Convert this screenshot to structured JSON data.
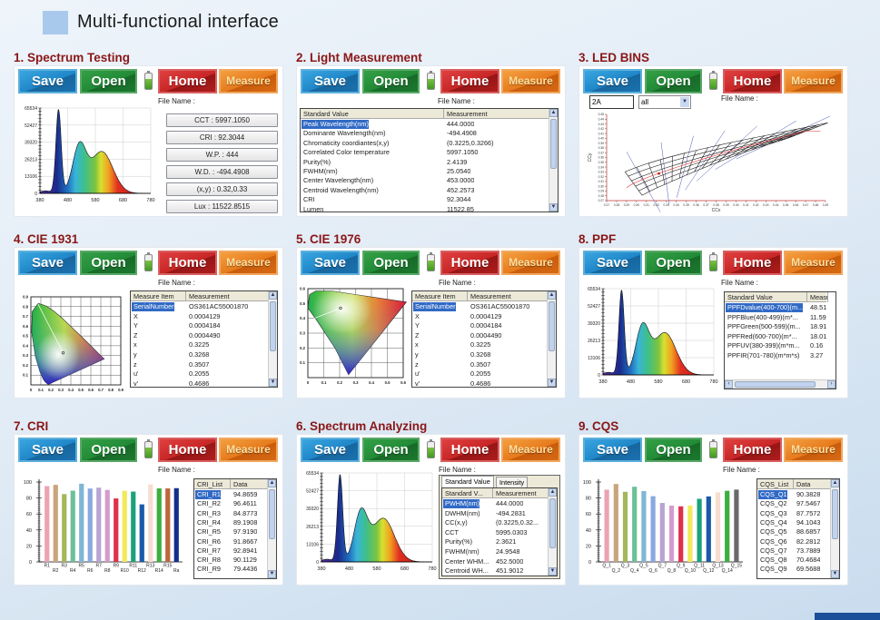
{
  "header": {
    "title": "Multi-functional interface"
  },
  "buttons": {
    "save": "Save",
    "open": "Open",
    "home": "Home",
    "measure": "Measure"
  },
  "file_name_label": "File Name :",
  "colors": {
    "title": "#8a1717",
    "save": "#1f86c8",
    "open": "#218a36",
    "home": "#c82626",
    "measure": "#e67a1c",
    "selection": "#316ac5"
  },
  "spectrum_axis": {
    "y_ticks": [
      "0",
      "13106",
      "26213",
      "39320",
      "52427",
      "65534"
    ],
    "x_ticks": [
      "380",
      "480",
      "580",
      "680",
      "780"
    ]
  },
  "panels": [
    {
      "id": "spectrum-testing",
      "title": "1. Spectrum Testing",
      "kind": "spectrum-values",
      "values": [
        "CCT : 5997.1050",
        "CRI : 92.3044",
        "W.P. : 444",
        "W.D. : -494.4908",
        "(x,y) : 0.32,0.33",
        "Lux : 11522.8515"
      ]
    },
    {
      "id": "light-measurement",
      "title": "2. Light Measurement",
      "kind": "table",
      "table": {
        "headers": [
          "Standard Value",
          "Measurement"
        ],
        "rows": [
          [
            "Peak Wavelength(nm)",
            "444.0000"
          ],
          [
            "Dominante Wavelength(nm)",
            "-494.4908"
          ],
          [
            "Chromaticity coordiantes(x,y)",
            "(0.3225,0.3266)"
          ],
          [
            "Correlated Color temperature",
            "5997.1050"
          ],
          [
            "Purity(%)",
            "2.4139"
          ],
          [
            "FWHM(nm)",
            "25.0540"
          ],
          [
            "Center Wavelength(nm)",
            "453.0000"
          ],
          [
            "Centroid Wavelength(nm)",
            "452.2573"
          ],
          [
            "CRI",
            "92.3044"
          ],
          [
            "Lumen",
            "11522.85"
          ]
        ]
      }
    },
    {
      "id": "led-bins",
      "title": "3. LED BINS",
      "kind": "bins",
      "bin_input": "2A",
      "bin_select": "all",
      "x_label": "CCx",
      "y_label": "CCy",
      "x_ticks": [
        "0.27",
        "0.28",
        "0.29",
        "0.30",
        "0.31",
        "0.32",
        "0.33",
        "0.34",
        "0.35",
        "0.36",
        "0.37",
        "0.38",
        "0.39",
        "0.40",
        "0.41",
        "0.42",
        "0.43",
        "0.44",
        "0.45",
        "0.46",
        "0.47",
        "0.48",
        "0.49"
      ],
      "y_ticks": [
        "0.27",
        "0.28",
        "0.29",
        "0.30",
        "0.31",
        "0.32",
        "0.33",
        "0.34",
        "0.35",
        "0.36",
        "0.37",
        "0.38",
        "0.39",
        "0.40",
        "0.41",
        "0.42",
        "0.43",
        "0.44",
        "0.45"
      ],
      "measured_point": {
        "x": 0.3225,
        "y": 0.3266
      }
    },
    {
      "id": "cie-1931",
      "title": "4. CIE 1931",
      "kind": "cie1931",
      "x_ticks": [
        "0",
        "0.1",
        "0.2",
        "0.3",
        "0.4",
        "0.5",
        "0.6",
        "0.7",
        "0.8",
        "0.9"
      ],
      "y_ticks": [
        "0.1",
        "0.2",
        "0.3",
        "0.4",
        "0.5",
        "0.6",
        "0.7",
        "0.8",
        "0.9"
      ],
      "measured_point": {
        "x": 0.3225,
        "y": 0.3268
      },
      "table": {
        "headers": [
          "Measure Item",
          "Measurement"
        ],
        "rows": [
          [
            "SerialNumber",
            "OS361AC55001870"
          ],
          [
            "X",
            "0.0004129"
          ],
          [
            "Y",
            "0.0004184"
          ],
          [
            "Z",
            "0.0004490"
          ],
          [
            "x",
            "0.3225"
          ],
          [
            "y",
            "0.3268"
          ],
          [
            "z",
            "0.3507"
          ],
          [
            "u'",
            "0.2055"
          ],
          [
            "v'",
            "0.4686"
          ]
        ]
      }
    },
    {
      "id": "cie-1976",
      "title": "5. CIE 1976",
      "kind": "cie1976",
      "x_ticks": [
        "0",
        "0.1",
        "0.2",
        "0.3",
        "0.4",
        "0.5",
        "0.6"
      ],
      "y_ticks": [
        "0.1",
        "0.2",
        "0.3",
        "0.4",
        "0.5",
        "0.6"
      ],
      "measured_point": {
        "u": 0.2055,
        "v": 0.4686
      },
      "table": {
        "headers": [
          "Measure Item",
          "Measurement"
        ],
        "rows": [
          [
            "SerialNumber",
            "OS361AC55001870"
          ],
          [
            "X",
            "0.0004129"
          ],
          [
            "Y",
            "0.0004184"
          ],
          [
            "Z",
            "0.0004490"
          ],
          [
            "x",
            "0.3225"
          ],
          [
            "y",
            "0.3268"
          ],
          [
            "z",
            "0.3507"
          ],
          [
            "u'",
            "0.2055"
          ],
          [
            "v'",
            "0.4686"
          ]
        ]
      }
    },
    {
      "id": "ppf",
      "title": "8. PPF",
      "kind": "spectrum-table",
      "table": {
        "headers": [
          "Standard Value",
          "Measu..."
        ],
        "rows": [
          [
            "PPFDvalue(400-700)(m...",
            "48.51"
          ],
          [
            "PPFBlue(400-499)(m*...",
            "11.59"
          ],
          [
            "PPFGreen(500-599)(m...",
            "18.91"
          ],
          [
            "PPFRed(600-700)(m*...",
            "18.01"
          ],
          [
            "PPFUV(380-399)(m*m...",
            "0.16"
          ],
          [
            "PPFIR(701-780)(m*m*s)",
            "3.27"
          ]
        ]
      }
    },
    {
      "id": "cri",
      "title": "7. CRI",
      "kind": "bars",
      "chart_data": {
        "type": "bar",
        "categories": [
          "R1",
          "R2",
          "R3",
          "R4",
          "R5",
          "R6",
          "R7",
          "R8",
          "R9",
          "R10",
          "R11",
          "R12",
          "R13",
          "R14",
          "R15",
          "Ra"
        ],
        "values": [
          94.87,
          96.46,
          84.88,
          89.19,
          97.92,
          91.87,
          92.89,
          90.11,
          79.44,
          89,
          88,
          72,
          97,
          92,
          92,
          92.3
        ],
        "bar_colors": [
          "#eba3b2",
          "#c9a57c",
          "#a6b65a",
          "#6cc09a",
          "#7fb6d6",
          "#8aa8e0",
          "#b8a4d4",
          "#d49ccc",
          "#e0304a",
          "#f2ea5a",
          "#1aa27a",
          "#1a5aa8",
          "#f7ddd0",
          "#3cae3c",
          "#c0663a",
          "#12308a"
        ],
        "ylim": [
          0,
          100
        ],
        "y_ticks": [
          "0",
          "20",
          "40",
          "60",
          "80",
          "100"
        ]
      },
      "table": {
        "headers": [
          "CRI_List",
          "Data"
        ],
        "rows": [
          [
            "CRI_R1",
            "94.8659"
          ],
          [
            "CRI_R2",
            "96.4611"
          ],
          [
            "CRI_R3",
            "84.8773"
          ],
          [
            "CRI_R4",
            "89.1908"
          ],
          [
            "CRI_R5",
            "97.9190"
          ],
          [
            "CRI_R6",
            "91.8667"
          ],
          [
            "CRI_R7",
            "92.8941"
          ],
          [
            "CRI_R8",
            "90.1129"
          ],
          [
            "CRI_R9",
            "79.4436"
          ]
        ]
      }
    },
    {
      "id": "spectrum-analyzing",
      "title": "6. Spectrum Analyzing",
      "kind": "spectrum-tabs",
      "tabs": [
        "Standard Value",
        "Intensity"
      ],
      "table": {
        "headers": [
          "Standard V...",
          "Measurement"
        ],
        "rows": [
          [
            "PWHM(nm)",
            "444.0000"
          ],
          [
            "DWHM(nm)",
            "-494.2831"
          ],
          [
            "CC(x,y)",
            "(0.3225,0.32..."
          ],
          [
            "CCT",
            "5995.0303"
          ],
          [
            "Purity(%)",
            "2.3621"
          ],
          [
            "FWHM(nm)",
            "24.9548"
          ],
          [
            "Center WHM...",
            "452.5000"
          ],
          [
            "Centroid WH...",
            "451.9012"
          ]
        ]
      }
    },
    {
      "id": "cqs",
      "title": "9. CQS",
      "kind": "bars",
      "chart_data": {
        "type": "bar",
        "categories": [
          "Q_1",
          "Q_2",
          "Q_3",
          "Q_4",
          "Q_5",
          "Q_6",
          "Q_7",
          "Q_8",
          "Q_9",
          "Q_10",
          "Q_11",
          "Q_12",
          "Q_13",
          "Q_14",
          "Q_15"
        ],
        "values": [
          90.38,
          97.55,
          87.76,
          94.1,
          88.69,
          82.28,
          73.79,
          70.47,
          69.57,
          70.5,
          79,
          82,
          87,
          89,
          90.5
        ],
        "bar_colors": [
          "#eba3b2",
          "#c9a57c",
          "#a6b65a",
          "#6cc09a",
          "#7fb6d6",
          "#8aa8e0",
          "#b8a4d4",
          "#d49ccc",
          "#e0304a",
          "#f2ea5a",
          "#1aa27a",
          "#1a5aa8",
          "#f7ddd0",
          "#3cae3c",
          "#6a6a6a"
        ],
        "ylim": [
          0,
          100
        ],
        "y_ticks": [
          "0",
          "20",
          "40",
          "60",
          "80",
          "100"
        ]
      },
      "table": {
        "headers": [
          "CQS_List",
          "Data"
        ],
        "rows": [
          [
            "CQS_Q1",
            "90.3828"
          ],
          [
            "CQS_Q2",
            "97.5467"
          ],
          [
            "CQS_Q3",
            "87.7572"
          ],
          [
            "CQS_Q4",
            "94.1043"
          ],
          [
            "CQS_Q5",
            "88.6857"
          ],
          [
            "CQS_Q6",
            "82.2812"
          ],
          [
            "CQS_Q7",
            "73.7889"
          ],
          [
            "CQS_Q8",
            "70.4684"
          ],
          [
            "CQS_Q9",
            "69.5688"
          ]
        ]
      }
    }
  ]
}
